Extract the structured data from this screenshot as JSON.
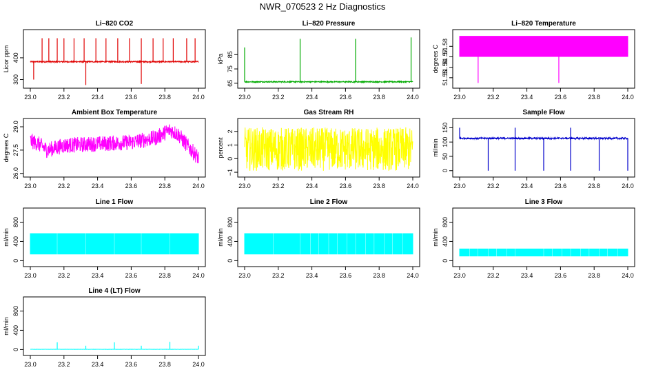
{
  "title": "NWR_070523  2 Hz Diagnostics",
  "chart_data": [
    {
      "type": "line",
      "title": "Li–820 CO2",
      "ylabel": "Licor ppm",
      "color": "#e00000",
      "xlim": [
        23.0,
        24.0
      ],
      "ylim": [
        270,
        520
      ],
      "xticks": [
        "23.0",
        "23.2",
        "23.4",
        "23.6",
        "23.8",
        "24.0"
      ],
      "yticks": [
        {
          "v": 300,
          "t": "300"
        },
        {
          "v": 400,
          "t": "400"
        }
      ],
      "series": [
        {
          "baseline": 382,
          "noise": 3,
          "spikes": [
            {
              "x": 23.02,
              "y": 300
            },
            {
              "x": 23.07,
              "y": 490
            },
            {
              "x": 23.11,
              "y": 490
            },
            {
              "x": 23.16,
              "y": 490
            },
            {
              "x": 23.2,
              "y": 490
            },
            {
              "x": 23.26,
              "y": 490
            },
            {
              "x": 23.32,
              "y": 490
            },
            {
              "x": 23.33,
              "y": 275
            },
            {
              "x": 23.39,
              "y": 490
            },
            {
              "x": 23.45,
              "y": 490
            },
            {
              "x": 23.52,
              "y": 490
            },
            {
              "x": 23.59,
              "y": 490
            },
            {
              "x": 23.66,
              "y": 490
            },
            {
              "x": 23.66,
              "y": 280
            },
            {
              "x": 23.73,
              "y": 490
            },
            {
              "x": 23.79,
              "y": 490
            },
            {
              "x": 23.85,
              "y": 490
            },
            {
              "x": 23.93,
              "y": 490
            },
            {
              "x": 23.98,
              "y": 490
            }
          ]
        }
      ]
    },
    {
      "type": "line",
      "title": "Li–820 Pressure",
      "ylabel": "kPa",
      "color": "#00aa00",
      "xlim": [
        23.0,
        24.0
      ],
      "ylim": [
        63,
        101
      ],
      "xticks": [
        "23.0",
        "23.2",
        "23.4",
        "23.6",
        "23.8",
        "24.0"
      ],
      "yticks": [
        {
          "v": 65,
          "t": "65"
        },
        {
          "v": 75,
          "t": "75"
        },
        {
          "v": 85,
          "t": "85"
        }
      ],
      "series": [
        {
          "baseline": 66,
          "noise": 0.4,
          "spikes": [
            {
              "x": 23.0,
              "y": 90
            },
            {
              "x": 23.33,
              "y": 96
            },
            {
              "x": 23.66,
              "y": 96
            },
            {
              "x": 23.99,
              "y": 97
            }
          ]
        }
      ]
    },
    {
      "type": "line",
      "title": "Li–820 Temperature",
      "ylabel": "degrees C",
      "color": "#ff00ff",
      "xlim": [
        23.0,
        24.0
      ],
      "ylim": [
        51.542,
        51.594
      ],
      "xticks": [
        "23.0",
        "23.2",
        "23.4",
        "23.6",
        "23.8",
        "24.0"
      ],
      "yticks": [
        {
          "v": 51.55,
          "t": "51.55"
        },
        {
          "v": 51.56,
          "t": "51.56"
        },
        {
          "v": 51.57,
          "t": "51.57"
        },
        {
          "v": 51.58,
          "t": "51.58"
        }
      ],
      "series": [
        {
          "low": 51.57,
          "high": 51.59,
          "spikes": [
            {
              "x": 23.11,
              "y": 51.545
            },
            {
              "x": 23.59,
              "y": 51.545
            }
          ]
        }
      ]
    },
    {
      "type": "line",
      "title": "Ambient Box Temperature",
      "ylabel": "degrees C",
      "color": "#ff00ff",
      "xlim": [
        23.0,
        24.0
      ],
      "ylim": [
        25.9,
        29.4
      ],
      "xticks": [
        "23.0",
        "23.2",
        "23.4",
        "23.6",
        "23.8",
        "24.0"
      ],
      "yticks": [
        {
          "v": 26.0,
          "t": "26.0"
        },
        {
          "v": 27.5,
          "t": "27.5"
        },
        {
          "v": 29.0,
          "t": "29.0"
        }
      ],
      "series": [
        {
          "trend": [
            {
              "x": 23.0,
              "y": 28.1
            },
            {
              "x": 23.05,
              "y": 27.9
            },
            {
              "x": 23.1,
              "y": 27.5
            },
            {
              "x": 23.2,
              "y": 27.8
            },
            {
              "x": 23.4,
              "y": 27.9
            },
            {
              "x": 23.6,
              "y": 28.0
            },
            {
              "x": 23.75,
              "y": 28.3
            },
            {
              "x": 23.83,
              "y": 28.8
            },
            {
              "x": 23.88,
              "y": 28.5
            },
            {
              "x": 23.95,
              "y": 27.6
            },
            {
              "x": 24.0,
              "y": 27.0
            }
          ],
          "noise": 0.5
        }
      ]
    },
    {
      "type": "line",
      "title": "Gas Stream RH",
      "ylabel": "percent",
      "color": "#ffff00",
      "xlim": [
        23.0,
        24.0
      ],
      "ylim": [
        -1.2,
        2.8
      ],
      "xticks": [
        "23.0",
        "23.2",
        "23.4",
        "23.6",
        "23.8",
        "24.0"
      ],
      "yticks": [
        {
          "v": -1,
          "t": "−1"
        },
        {
          "v": 0,
          "t": "0"
        },
        {
          "v": 1,
          "t": "1"
        },
        {
          "v": 2,
          "t": "2"
        }
      ],
      "series": [
        {
          "baseline": 0.7,
          "noise": 1.6
        }
      ]
    },
    {
      "type": "line",
      "title": "Sample Flow",
      "ylabel": "ml/min",
      "color": "#0000cc",
      "xlim": [
        23.0,
        24.0
      ],
      "ylim": [
        -15,
        175
      ],
      "xticks": [
        "23.0",
        "23.2",
        "23.4",
        "23.6",
        "23.8",
        "24.0"
      ],
      "yticks": [
        {
          "v": 0,
          "t": "0"
        },
        {
          "v": 50,
          "t": "50"
        },
        {
          "v": 100,
          "t": "100"
        },
        {
          "v": 150,
          "t": "150"
        }
      ],
      "series": [
        {
          "baseline": 113,
          "noise": 3,
          "spikes": [
            {
              "x": 23.0,
              "y": 150
            },
            {
              "x": 23.17,
              "y": 0
            },
            {
              "x": 23.33,
              "y": 0
            },
            {
              "x": 23.33,
              "y": 150
            },
            {
              "x": 23.5,
              "y": 0
            },
            {
              "x": 23.66,
              "y": 0
            },
            {
              "x": 23.66,
              "y": 150
            },
            {
              "x": 23.83,
              "y": 0
            },
            {
              "x": 24.0,
              "y": 0
            }
          ]
        }
      ]
    },
    {
      "type": "line",
      "title": "Line 1 Flow",
      "ylabel": "ml/min",
      "color": "#00ffff",
      "xlim": [
        23.0,
        24.0
      ],
      "ylim": [
        -80,
        1050
      ],
      "xticks": [
        "23.0",
        "23.2",
        "23.4",
        "23.6",
        "23.8",
        "24.0"
      ],
      "yticks": [
        {
          "v": 0,
          "t": "0"
        },
        {
          "v": 400,
          "t": "400"
        },
        {
          "v": 800,
          "t": "800"
        }
      ],
      "series": [
        {
          "low": 130,
          "high": 570,
          "gaps": [
            23.16,
            23.33,
            23.5,
            23.66,
            23.83
          ]
        }
      ]
    },
    {
      "type": "line",
      "title": "Line 2 Flow",
      "ylabel": "ml/min",
      "color": "#00ffff",
      "xlim": [
        23.0,
        24.0
      ],
      "ylim": [
        -80,
        1050
      ],
      "xticks": [
        "23.0",
        "23.2",
        "23.4",
        "23.6",
        "23.8",
        "24.0"
      ],
      "yticks": [
        {
          "v": 0,
          "t": "0"
        },
        {
          "v": 400,
          "t": "400"
        },
        {
          "v": 800,
          "t": "800"
        }
      ],
      "series": [
        {
          "low": 130,
          "high": 570,
          "gaps": [
            23.17,
            23.33,
            23.39,
            23.44,
            23.5,
            23.55,
            23.61,
            23.66,
            23.72,
            23.77,
            23.83,
            23.88,
            23.94
          ]
        }
      ]
    },
    {
      "type": "line",
      "title": "Line 3 Flow",
      "ylabel": "ml/min",
      "color": "#00ffff",
      "xlim": [
        23.0,
        24.0
      ],
      "ylim": [
        -80,
        1050
      ],
      "xticks": [
        "23.0",
        "23.2",
        "23.4",
        "23.6",
        "23.8",
        "24.0"
      ],
      "yticks": [
        {
          "v": 0,
          "t": "0"
        },
        {
          "v": 400,
          "t": "400"
        },
        {
          "v": 800,
          "t": "800"
        }
      ],
      "series": [
        {
          "low": 90,
          "high": 250,
          "gaps": [
            23.06,
            23.11,
            23.17,
            23.22,
            23.28,
            23.33,
            23.5,
            23.55,
            23.61,
            23.66,
            23.72,
            23.77,
            23.83,
            23.88,
            23.94
          ]
        }
      ]
    },
    {
      "type": "line",
      "title": "Line 4 (LT) Flow",
      "ylabel": "ml/min",
      "color": "#00ffff",
      "xlim": [
        23.0,
        24.0
      ],
      "ylim": [
        -80,
        1050
      ],
      "xticks": [
        "23.0",
        "23.2",
        "23.4",
        "23.6",
        "23.8",
        "24.0"
      ],
      "yticks": [
        {
          "v": 0,
          "t": "0"
        },
        {
          "v": 400,
          "t": "400"
        },
        {
          "v": 800,
          "t": "800"
        }
      ],
      "series": [
        {
          "baseline": 5,
          "noise": 2,
          "spikes": [
            {
              "x": 23.16,
              "y": 150
            },
            {
              "x": 23.33,
              "y": 80
            },
            {
              "x": 23.5,
              "y": 150
            },
            {
              "x": 23.66,
              "y": 80
            },
            {
              "x": 23.83,
              "y": 160
            },
            {
              "x": 24.0,
              "y": 80
            }
          ]
        }
      ]
    }
  ]
}
